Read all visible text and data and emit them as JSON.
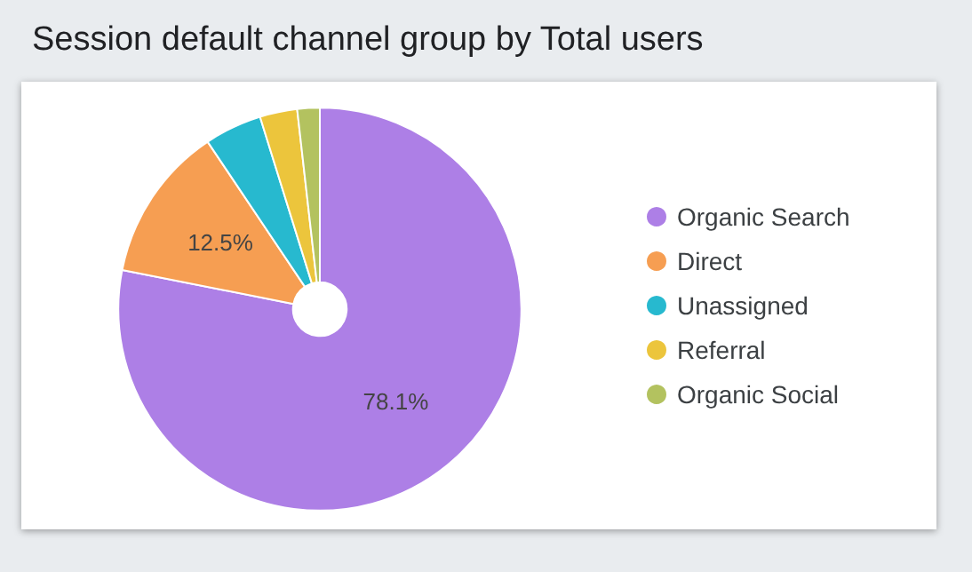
{
  "chart_data": {
    "type": "donut",
    "title": "Session default channel group by Total users",
    "categories": [
      "Organic Search",
      "Direct",
      "Unassigned",
      "Referral",
      "Organic Social"
    ],
    "values": [
      78.1,
      12.5,
      4.6,
      3.0,
      1.8
    ],
    "colors": [
      "#ad7fe6",
      "#f69e52",
      "#27b9cf",
      "#ecc53c",
      "#b3c25f"
    ],
    "value_labels": [
      "78.1%",
      "12.5%",
      null,
      null,
      null
    ],
    "legend": "right"
  }
}
